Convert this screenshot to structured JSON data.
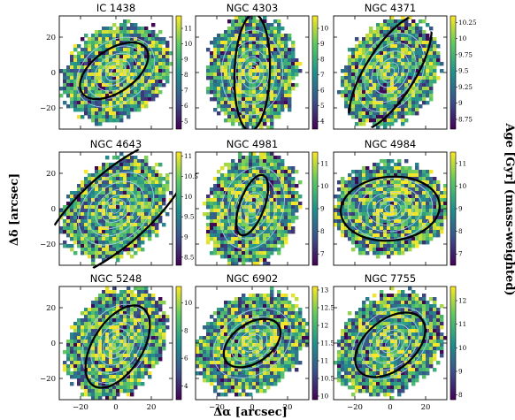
{
  "chart_data": [
    {
      "type": "heatmap",
      "title": "IC 1438",
      "colorbar_ticks": [
        5,
        6,
        7,
        8,
        9,
        10,
        11
      ],
      "clim": [
        4.5,
        11.8
      ],
      "show_x_ticks": false,
      "show_y_ticks": true,
      "ellipse": {
        "cx": -1,
        "cy": 1,
        "a": 22,
        "b": 12,
        "angle_deg": 35
      }
    },
    {
      "type": "heatmap",
      "title": "NGC 4303",
      "colorbar_ticks": [
        4,
        5,
        6,
        7,
        8,
        9,
        10
      ],
      "clim": [
        3.5,
        10.8
      ],
      "show_x_ticks": false,
      "show_y_ticks": false,
      "ellipse": {
        "cx": 0,
        "cy": 0,
        "a": 33,
        "b": 10,
        "angle_deg": 88
      }
    },
    {
      "type": "heatmap",
      "title": "NGC 4371",
      "colorbar_ticks": [
        8.75,
        9.0,
        9.25,
        9.5,
        9.75,
        10.0,
        10.25
      ],
      "clim": [
        8.6,
        10.35
      ],
      "show_x_ticks": false,
      "show_y_ticks": false,
      "ellipse": {
        "cx": 0,
        "cy": 0,
        "a": 38,
        "b": 14,
        "angle_deg": 58
      }
    },
    {
      "type": "heatmap",
      "title": "NGC 4643",
      "colorbar_ticks": [
        8.5,
        9.0,
        9.5,
        10.0,
        10.5,
        11.0
      ],
      "clim": [
        8.3,
        11.1
      ],
      "show_x_ticks": false,
      "show_y_ticks": true,
      "ellipse": {
        "cx": 0,
        "cy": 0,
        "a": 55,
        "b": 20,
        "angle_deg": 42
      }
    },
    {
      "type": "heatmap",
      "title": "NGC 4981",
      "colorbar_ticks": [
        7,
        8,
        9,
        10,
        11
      ],
      "clim": [
        6.5,
        11.5
      ],
      "show_x_ticks": false,
      "show_y_ticks": false,
      "ellipse": {
        "cx": 0,
        "cy": 2,
        "a": 18,
        "b": 7,
        "angle_deg": 70
      }
    },
    {
      "type": "heatmap",
      "title": "NGC 4984",
      "colorbar_ticks": [
        7,
        8,
        9,
        10,
        11
      ],
      "clim": [
        6.5,
        11.5
      ],
      "show_x_ticks": false,
      "show_y_ticks": false,
      "ellipse": {
        "cx": 0,
        "cy": 0,
        "a": 28,
        "b": 18,
        "angle_deg": 5
      }
    },
    {
      "type": "heatmap",
      "title": "NGC 5248",
      "colorbar_ticks": [
        4,
        6,
        8,
        10
      ],
      "clim": [
        3,
        11.2
      ],
      "show_x_ticks": true,
      "show_y_ticks": true,
      "ellipse": {
        "cx": 1,
        "cy": -2,
        "a": 26,
        "b": 14,
        "angle_deg": 58
      }
    },
    {
      "type": "heatmap",
      "title": "NGC 6902",
      "colorbar_ticks": [
        10.0,
        10.5,
        11.0,
        11.5,
        12.0,
        12.5,
        13.0
      ],
      "clim": [
        9.9,
        13.1
      ],
      "show_x_ticks": true,
      "show_y_ticks": false,
      "ellipse": {
        "cx": 0,
        "cy": 0,
        "a": 18,
        "b": 11,
        "angle_deg": 35
      }
    },
    {
      "type": "heatmap",
      "title": "NGC 7755",
      "colorbar_ticks": [
        8,
        9,
        10,
        11,
        12
      ],
      "clim": [
        7.8,
        12.6
      ],
      "show_x_ticks": true,
      "show_y_ticks": false,
      "ellipse": {
        "cx": 0,
        "cy": -1,
        "a": 23,
        "b": 14,
        "angle_deg": 40
      }
    }
  ],
  "x_ticks": [
    -20,
    0,
    20
  ],
  "y_ticks": [
    -20,
    0,
    20
  ],
  "xlim": [
    -32,
    32
  ],
  "ylim": [
    -32,
    32
  ],
  "xlabel": "Δα [arcsec]",
  "ylabel": "Δδ [arcsec]",
  "colorbar_label": "Age [Gyr] (mass-weighted)",
  "colormap": [
    "#440154",
    "#3b528b",
    "#21918c",
    "#5ec962",
    "#fde725"
  ],
  "contour_color": "#a9d0ec",
  "ellipse_color": "#000000"
}
